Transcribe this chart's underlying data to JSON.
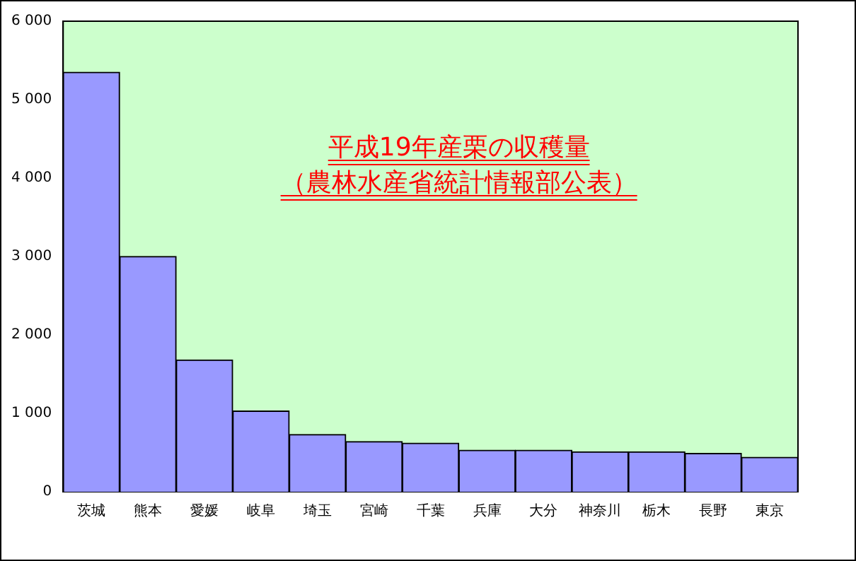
{
  "chart_data": {
    "type": "bar",
    "title": "平成19年産栗の収穫量",
    "subtitle": "（農林水産省統計情報部公表）",
    "categories": [
      "茨城",
      "熊本",
      "愛媛",
      "岐阜",
      "埼玉",
      "宮崎",
      "千葉",
      "兵庫",
      "大分",
      "神奈川",
      "栃木",
      "長野",
      "東京"
    ],
    "values": [
      5350,
      3000,
      1680,
      1030,
      730,
      640,
      620,
      530,
      530,
      510,
      510,
      490,
      440
    ],
    "color": "#9999ff",
    "ylim": [
      0,
      6000
    ],
    "yticks": [
      {
        "value": 0,
        "label": "0"
      },
      {
        "value": 1000,
        "label": "1 000"
      },
      {
        "value": 2000,
        "label": "2 000"
      },
      {
        "value": 3000,
        "label": "3 000"
      },
      {
        "value": 4000,
        "label": "4 000"
      },
      {
        "value": 5000,
        "label": "5 000"
      },
      {
        "value": 6000,
        "label": "6 000"
      }
    ],
    "grid": false,
    "legend": false
  }
}
